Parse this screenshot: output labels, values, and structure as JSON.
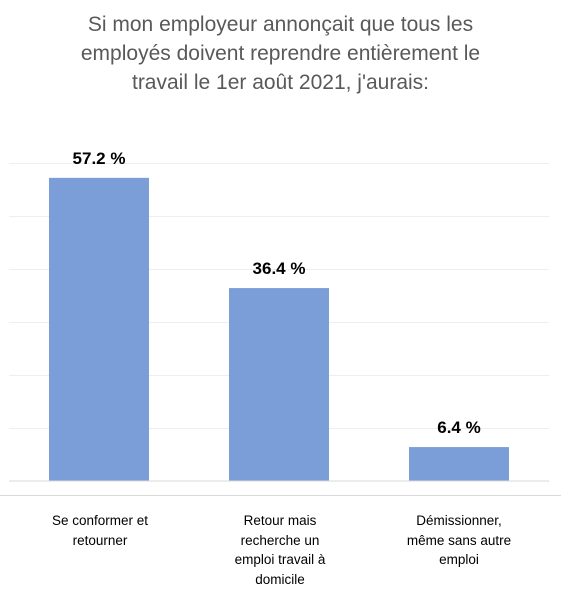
{
  "chart_data": {
    "type": "bar",
    "title_lines": [
      "Si mon employeur annonçait que tous les",
      "employés doivent reprendre entièrement le",
      "travail le 1er août 2021, j'aurais:"
    ],
    "categories": [
      [
        "Se conformer et",
        "retourner"
      ],
      [
        "Retour mais",
        "recherche un",
        "emploi travail à",
        "domicile"
      ],
      [
        "Démissionner,",
        "même sans autre",
        "emploi"
      ]
    ],
    "values": [
      57.2,
      36.4,
      6.4
    ],
    "data_labels": [
      "57.2 %",
      "36.4 %",
      "6.4 %"
    ],
    "unit": "%",
    "ylim": [
      0,
      60
    ],
    "grid": true,
    "legend": "none",
    "bar_color": "#7b9dd8"
  }
}
